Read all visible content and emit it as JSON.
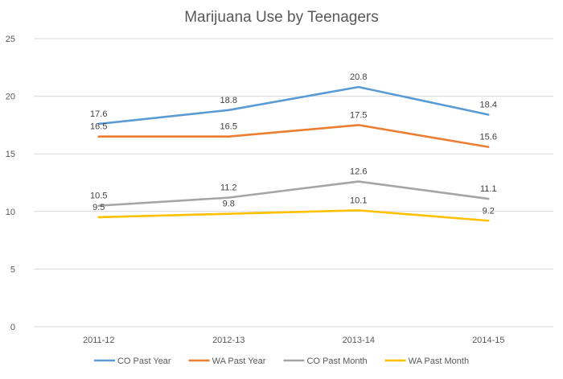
{
  "chart_data": {
    "type": "line",
    "title": "Marijuana Use by Teenagers",
    "xlabel": "",
    "ylabel": "",
    "categories": [
      "2011-12",
      "2012-13",
      "2013-14",
      "2014-15"
    ],
    "ylim": [
      0,
      25
    ],
    "yticks": [
      0,
      5,
      10,
      15,
      20,
      25
    ],
    "grid": true,
    "legend_position": "bottom",
    "series": [
      {
        "name": "CO Past Year",
        "values": [
          17.6,
          18.8,
          20.8,
          18.4
        ],
        "labels": [
          "17.6",
          "18.8",
          "20.8",
          "18.4"
        ],
        "color": "#5b9bd5"
      },
      {
        "name": "WA Past Year",
        "values": [
          16.5,
          16.5,
          17.5,
          15.6
        ],
        "labels": [
          "16.5",
          "16.5",
          "17.5",
          "15.6"
        ],
        "color": "#ed7d31"
      },
      {
        "name": "CO Past Month",
        "values": [
          10.5,
          11.2,
          12.6,
          11.1
        ],
        "labels": [
          "10.5",
          "11.2",
          "12.6",
          "11.1"
        ],
        "color": "#a5a5a5"
      },
      {
        "name": "WA Past Month",
        "values": [
          9.5,
          9.8,
          10.1,
          9.2
        ],
        "labels": [
          "9.5",
          "9.8",
          "10.1",
          "9.2"
        ],
        "color": "#ffc000"
      }
    ]
  }
}
